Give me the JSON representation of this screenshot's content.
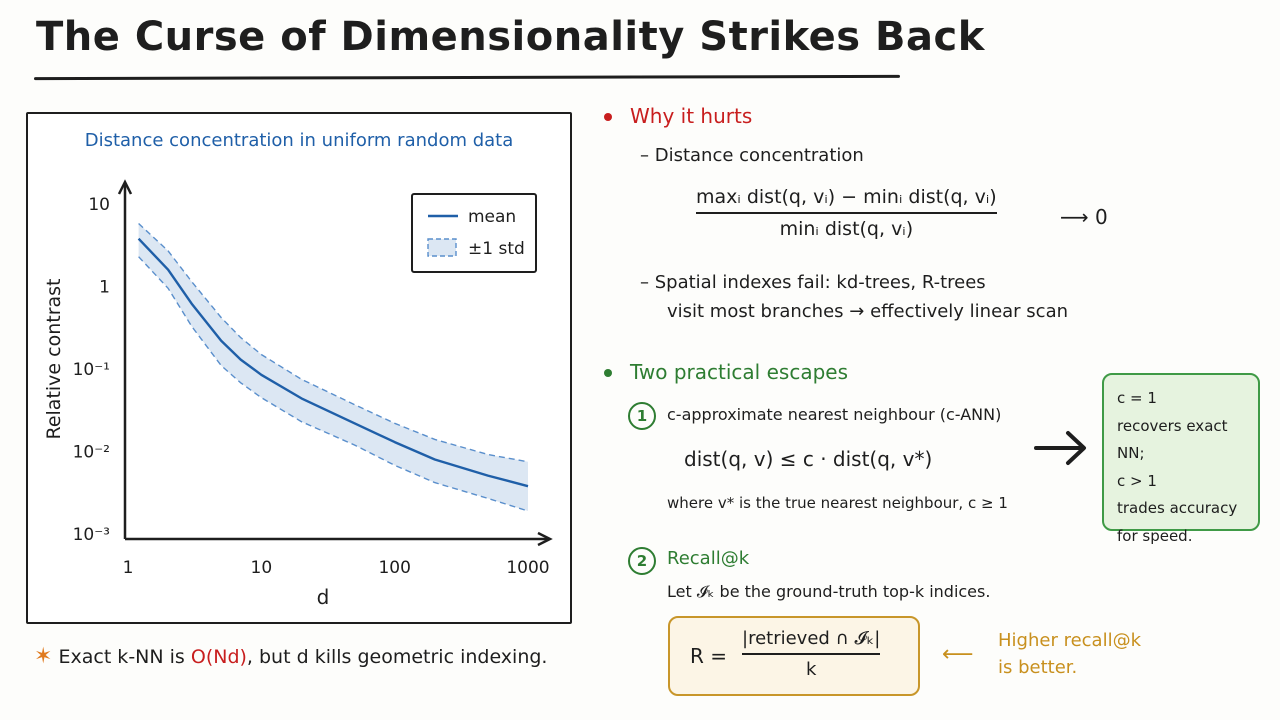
{
  "title": "The Curse of Dimensionality Strikes Back",
  "chart_data": {
    "type": "line",
    "title": "Distance concentration in uniform random data",
    "xlabel": "d",
    "ylabel": "Relative contrast",
    "x_scale": "log",
    "y_scale": "log",
    "xlim": [
      1,
      1000
    ],
    "ylim": [
      0.001,
      10
    ],
    "x_ticks": [
      "1",
      "10",
      "100",
      "1000"
    ],
    "y_ticks": [
      "10",
      "1",
      "10⁻¹",
      "10⁻²",
      "10⁻³"
    ],
    "legend": {
      "placement": "top-right",
      "entries": [
        "mean",
        "±1 std"
      ]
    },
    "series": [
      {
        "name": "mean",
        "x": [
          1.2,
          2,
          3,
          5,
          7,
          10,
          20,
          50,
          100,
          200,
          500,
          1000
        ],
        "y": [
          3.8,
          1.6,
          0.62,
          0.22,
          0.13,
          0.085,
          0.044,
          0.022,
          0.013,
          0.008,
          0.0051,
          0.0038
        ]
      },
      {
        "name": "±1 std",
        "x": [
          1.2,
          2,
          3,
          5,
          7,
          10,
          20,
          50,
          100,
          200,
          500,
          1000
        ],
        "upper": [
          5.8,
          2.7,
          1.15,
          0.42,
          0.24,
          0.15,
          0.075,
          0.037,
          0.022,
          0.014,
          0.0092,
          0.0075
        ],
        "lower": [
          2.3,
          0.95,
          0.33,
          0.11,
          0.068,
          0.045,
          0.023,
          0.012,
          0.0068,
          0.0042,
          0.0027,
          0.0019
        ]
      }
    ],
    "colors": {
      "line": "#1f5fa8",
      "band": "#dce7f3",
      "band_edge": "#5a8fcc"
    }
  },
  "footnote": {
    "star": "✶",
    "pre": "Exact k-NN is ",
    "complexity": "O(Nd)",
    "post": ", but d kills geometric indexing."
  },
  "why": {
    "heading": "Why it hurts",
    "item1": "– Distance concentration",
    "numerator": "maxᵢ dist(q, vᵢ) − minᵢ dist(q, vᵢ)",
    "denominator": "minᵢ dist(q, vᵢ)",
    "limit": "⟶ 0",
    "item2_line1": "– Spatial indexes fail:  kd-trees, R-trees",
    "item2_line2": "visit most branches → effectively linear scan"
  },
  "escapes": {
    "heading": "Two practical escapes",
    "one": {
      "num": "1",
      "label": "c-approximate nearest neighbour (c-ANN)",
      "formula": "dist(q, v) ≤ c · dist(q, v*)",
      "where": "where v* is the true nearest neighbour,  c ≥ 1"
    },
    "note_lines": [
      "c = 1",
      "recovers exact NN;",
      "c > 1",
      "trades accuracy",
      "for speed."
    ],
    "two": {
      "num": "2",
      "label": "Recall@k",
      "desc": "Let 𝓘ₖ be the ground-truth top-k indices.",
      "lhs": "R =",
      "numerator": "|retrieved ∩ 𝓘ₖ|",
      "denominator": "k"
    },
    "recall_note_line1": "Higher recall@k",
    "recall_note_line2": "is better.",
    "recall_arrow": "⟵"
  },
  "colors": {
    "red": "#c81e1e",
    "green": "#2e7d32",
    "amber": "#c8901e"
  }
}
